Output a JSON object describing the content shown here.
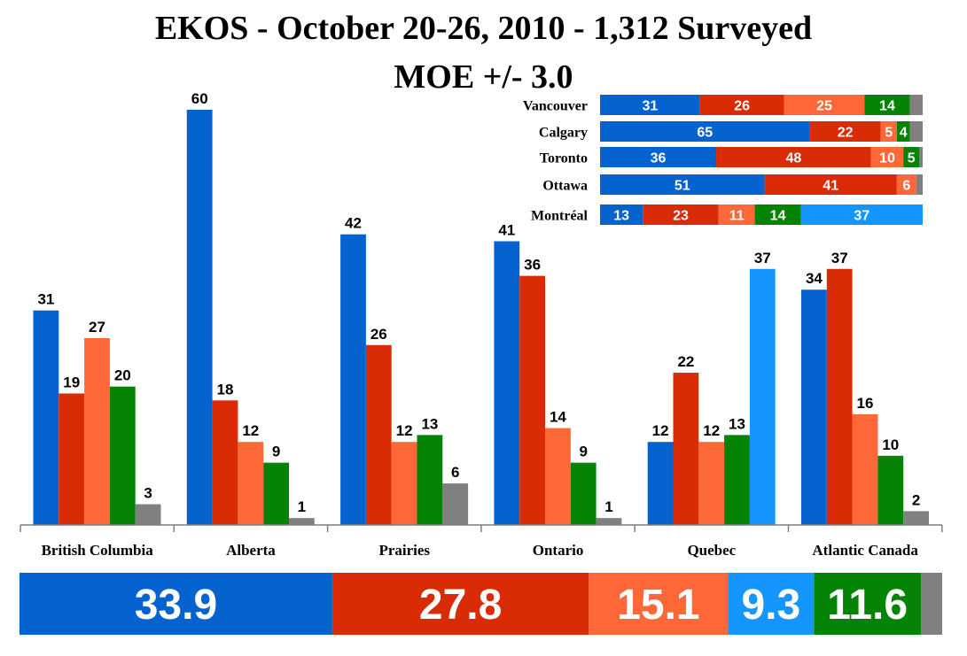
{
  "title": "EKOS - October 20-26, 2010 - 1,312 Surveyed",
  "subtitle": "MOE +/- 3.0",
  "colors": [
    "#0563cf",
    "#d92b06",
    "#fe6839",
    "#048304",
    "#808080",
    "#1596fe"
  ],
  "chart_data": [
    {
      "type": "bar",
      "categories": [
        "British Columbia",
        "Alberta",
        "Prairies",
        "Ontario",
        "Quebec",
        "Atlantic Canada"
      ],
      "ylim": [
        0,
        60
      ],
      "grid": false,
      "bars": [
        [
          31,
          19,
          27,
          20,
          3
        ],
        [
          60,
          18,
          12,
          9,
          1
        ],
        [
          42,
          26,
          12,
          13,
          6
        ],
        [
          41,
          36,
          14,
          9,
          1
        ],
        [
          12,
          22,
          12,
          13,
          37
        ],
        [
          34,
          37,
          16,
          10,
          2
        ]
      ],
      "bar_colors": [
        [
          0,
          1,
          2,
          3,
          4
        ],
        [
          0,
          1,
          2,
          3,
          4
        ],
        [
          0,
          1,
          2,
          3,
          4
        ],
        [
          0,
          1,
          2,
          3,
          4
        ],
        [
          0,
          1,
          2,
          3,
          5
        ],
        [
          0,
          1,
          2,
          3,
          4
        ]
      ]
    },
    {
      "type": "stacked-bar",
      "orientation": "horizontal",
      "categories": [
        "Vancouver",
        "Calgary",
        "Toronto",
        "Ottawa",
        "Montréal"
      ],
      "rows": [
        {
          "values": [
            31,
            26,
            25,
            14,
            4
          ],
          "colors": [
            0,
            1,
            2,
            3,
            4
          ],
          "labels": [
            "31",
            "26",
            "25",
            "14",
            ""
          ]
        },
        {
          "values": [
            65,
            22,
            5,
            4,
            4
          ],
          "colors": [
            0,
            1,
            2,
            3,
            4
          ],
          "labels": [
            "65",
            "22",
            "5",
            "4",
            ""
          ]
        },
        {
          "values": [
            36,
            48,
            10,
            5,
            1
          ],
          "colors": [
            0,
            1,
            2,
            3,
            4
          ],
          "labels": [
            "36",
            "48",
            "10",
            "5",
            ""
          ]
        },
        {
          "values": [
            51,
            41,
            6,
            2
          ],
          "colors": [
            0,
            1,
            2,
            4
          ],
          "labels": [
            "51",
            "41",
            "6",
            ""
          ]
        },
        {
          "values": [
            13,
            23,
            11,
            14,
            37
          ],
          "colors": [
            0,
            1,
            2,
            3,
            5
          ],
          "labels": [
            "13",
            "23",
            "11",
            "14",
            "37"
          ]
        }
      ]
    },
    {
      "type": "stacked-bar",
      "orientation": "horizontal",
      "values": [
        33.9,
        27.8,
        15.1,
        9.3,
        11.6,
        2.3
      ],
      "colors": [
        0,
        1,
        2,
        5,
        3,
        4
      ],
      "labels": [
        "33.9",
        "27.8",
        "15.1",
        "9.3",
        "11.6",
        ""
      ]
    }
  ]
}
